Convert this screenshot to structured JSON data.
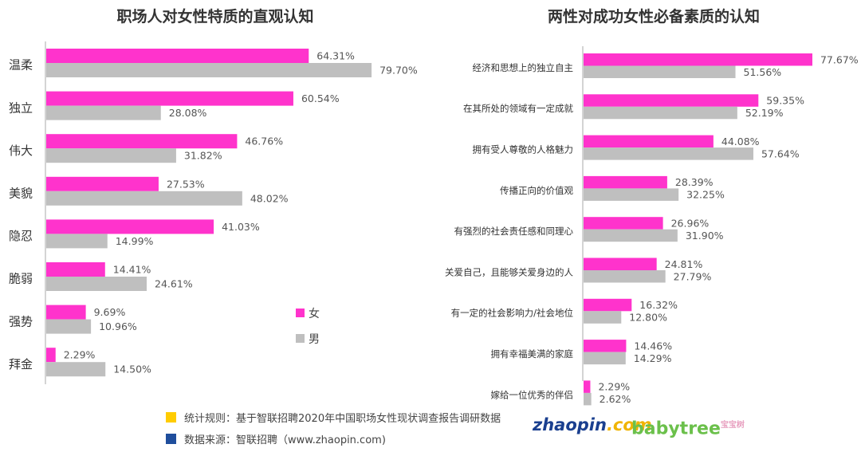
{
  "colors": {
    "female": "#ff33cc",
    "male": "#bfbfbf",
    "foot_yellow": "#ffcc00",
    "foot_blue": "#1f4e9c"
  },
  "chart_data": [
    {
      "type": "bar",
      "orientation": "horizontal",
      "title": "职场人对女性特质的直观认知",
      "categories": [
        "温柔",
        "独立",
        "伟大",
        "美貌",
        "隐忍",
        "脆弱",
        "强势",
        "拜金"
      ],
      "series": [
        {
          "name": "女",
          "values": [
            64.31,
            60.54,
            46.76,
            27.53,
            41.03,
            14.41,
            9.69,
            2.29
          ]
        },
        {
          "name": "男",
          "values": [
            79.7,
            28.08,
            31.82,
            48.02,
            14.99,
            24.61,
            10.96,
            14.5
          ]
        }
      ],
      "value_format": "%",
      "xlim": [
        0,
        80
      ],
      "grid": false,
      "legend_position": "right"
    },
    {
      "type": "bar",
      "orientation": "horizontal",
      "title": "两性对成功女性必备素质的认知",
      "categories": [
        "经济和思想上的独立自主",
        "在其所处的领域有一定成就",
        "拥有受人尊敬的人格魅力",
        "传播正向的价值观",
        "有强烈的社会责任感和同理心",
        "关爱自己，且能够关爱身边的人",
        "有一定的社会影响力/社会地位",
        "拥有幸福美满的家庭",
        "嫁给一位优秀的伴侣"
      ],
      "series": [
        {
          "name": "女",
          "values": [
            77.67,
            59.35,
            44.08,
            28.39,
            26.96,
            24.81,
            16.32,
            14.46,
            2.29
          ]
        },
        {
          "name": "男",
          "values": [
            51.56,
            52.19,
            57.64,
            32.25,
            31.9,
            27.79,
            12.8,
            14.29,
            2.62
          ]
        }
      ],
      "value_format": "%",
      "xlim": [
        0,
        80
      ],
      "grid": false
    }
  ],
  "legend": {
    "female_label": "女",
    "male_label": "男"
  },
  "footer": {
    "rule": "统计规则：基于智联招聘2020年中国职场女性现状调查报告调研数据",
    "source": "数据来源：智联招聘（www.zhaopin.com)"
  },
  "logos": {
    "zhaopin_main": "zhaopin",
    "zhaopin_suffix": ".com",
    "babytree": "babytree",
    "babytree_tag": "宝宝树"
  }
}
